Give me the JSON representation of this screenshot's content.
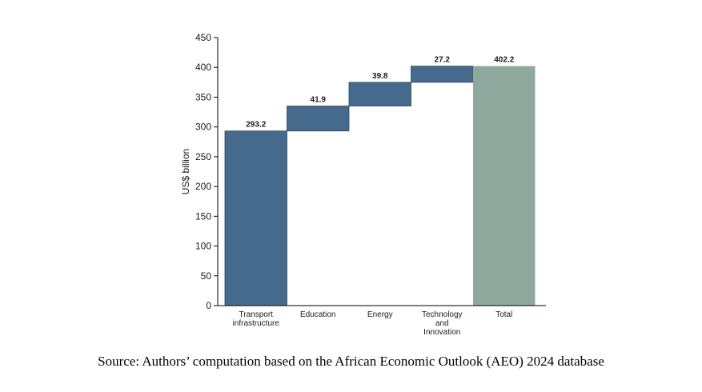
{
  "chart_data": {
    "type": "bar",
    "subtype": "waterfall",
    "title": "",
    "xlabel": "",
    "ylabel": "US$ billion",
    "ylim": [
      0,
      450
    ],
    "yticks": [
      0,
      50,
      100,
      150,
      200,
      250,
      300,
      350,
      400,
      450
    ],
    "grid": false,
    "categories": [
      [
        "Transport",
        "infrastructure"
      ],
      [
        "Education"
      ],
      [
        "Energy"
      ],
      [
        "Technology",
        "and",
        "Innovation"
      ],
      [
        "Total"
      ]
    ],
    "values": [
      293.2,
      41.9,
      39.8,
      27.2,
      402.2
    ],
    "value_labels": [
      "293.2",
      "41.9",
      "39.8",
      "27.2",
      "402.2"
    ],
    "is_total": [
      false,
      false,
      false,
      false,
      true
    ],
    "colors": {
      "increment": "#466a8c",
      "total": "#8ea89d",
      "edge": "#2e465e"
    }
  },
  "caption": "Source: Authors’ computation based on the African Economic Outlook (AEO) 2024 database"
}
